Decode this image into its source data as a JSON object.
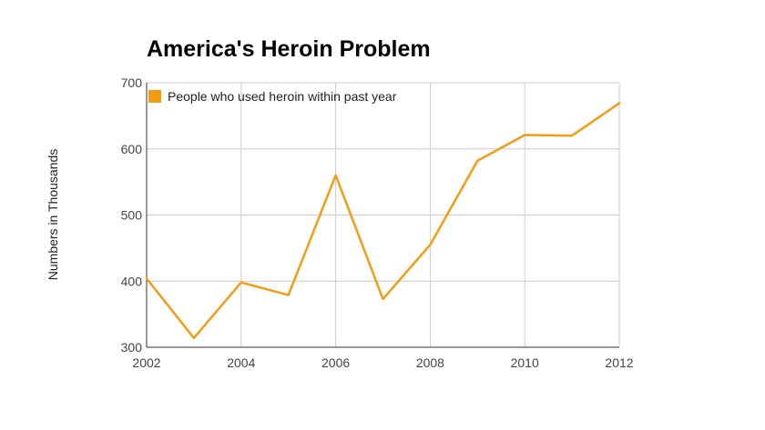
{
  "chart_data": {
    "type": "line",
    "title": "America's Heroin Problem",
    "xlabel": "",
    "ylabel": "Numbers in Thousands",
    "xlim": [
      2002,
      2012
    ],
    "ylim": [
      300,
      700
    ],
    "x_ticks": [
      2002,
      2004,
      2006,
      2008,
      2010,
      2012
    ],
    "y_ticks": [
      300,
      400,
      500,
      600,
      700
    ],
    "grid": true,
    "legend_position": "top-left",
    "x": [
      2002,
      2003,
      2004,
      2005,
      2006,
      2007,
      2008,
      2009,
      2010,
      2011,
      2012
    ],
    "series": [
      {
        "name": "People who used heroin within past year",
        "color": "#f39c12",
        "values": [
          404,
          314,
          398,
          379,
          560,
          373,
          455,
          582,
          621,
          620,
          669
        ]
      }
    ]
  }
}
